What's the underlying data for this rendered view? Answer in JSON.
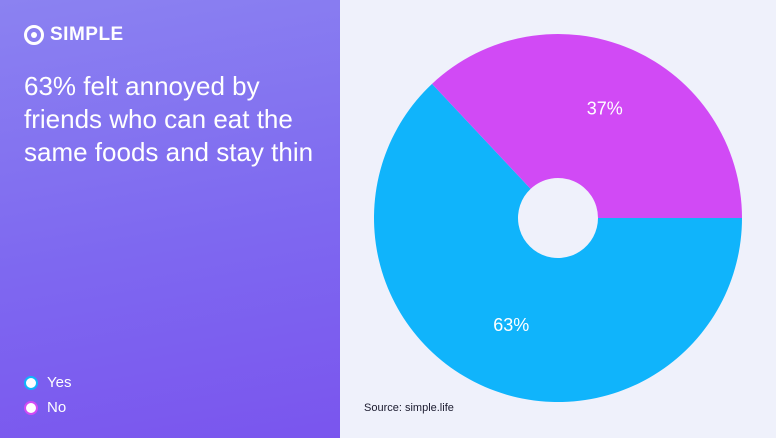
{
  "brand": "SIMPLE",
  "chart_data": {
    "type": "pie",
    "title": "63% felt annoyed by friends who can eat the same foods and stay thin",
    "categories": [
      "Yes",
      "No"
    ],
    "values": [
      63,
      37
    ],
    "value_labels": [
      "63%",
      "37%"
    ],
    "colors": [
      "#10b4fb",
      "#d14af5"
    ],
    "source": "Source: simple.life"
  }
}
